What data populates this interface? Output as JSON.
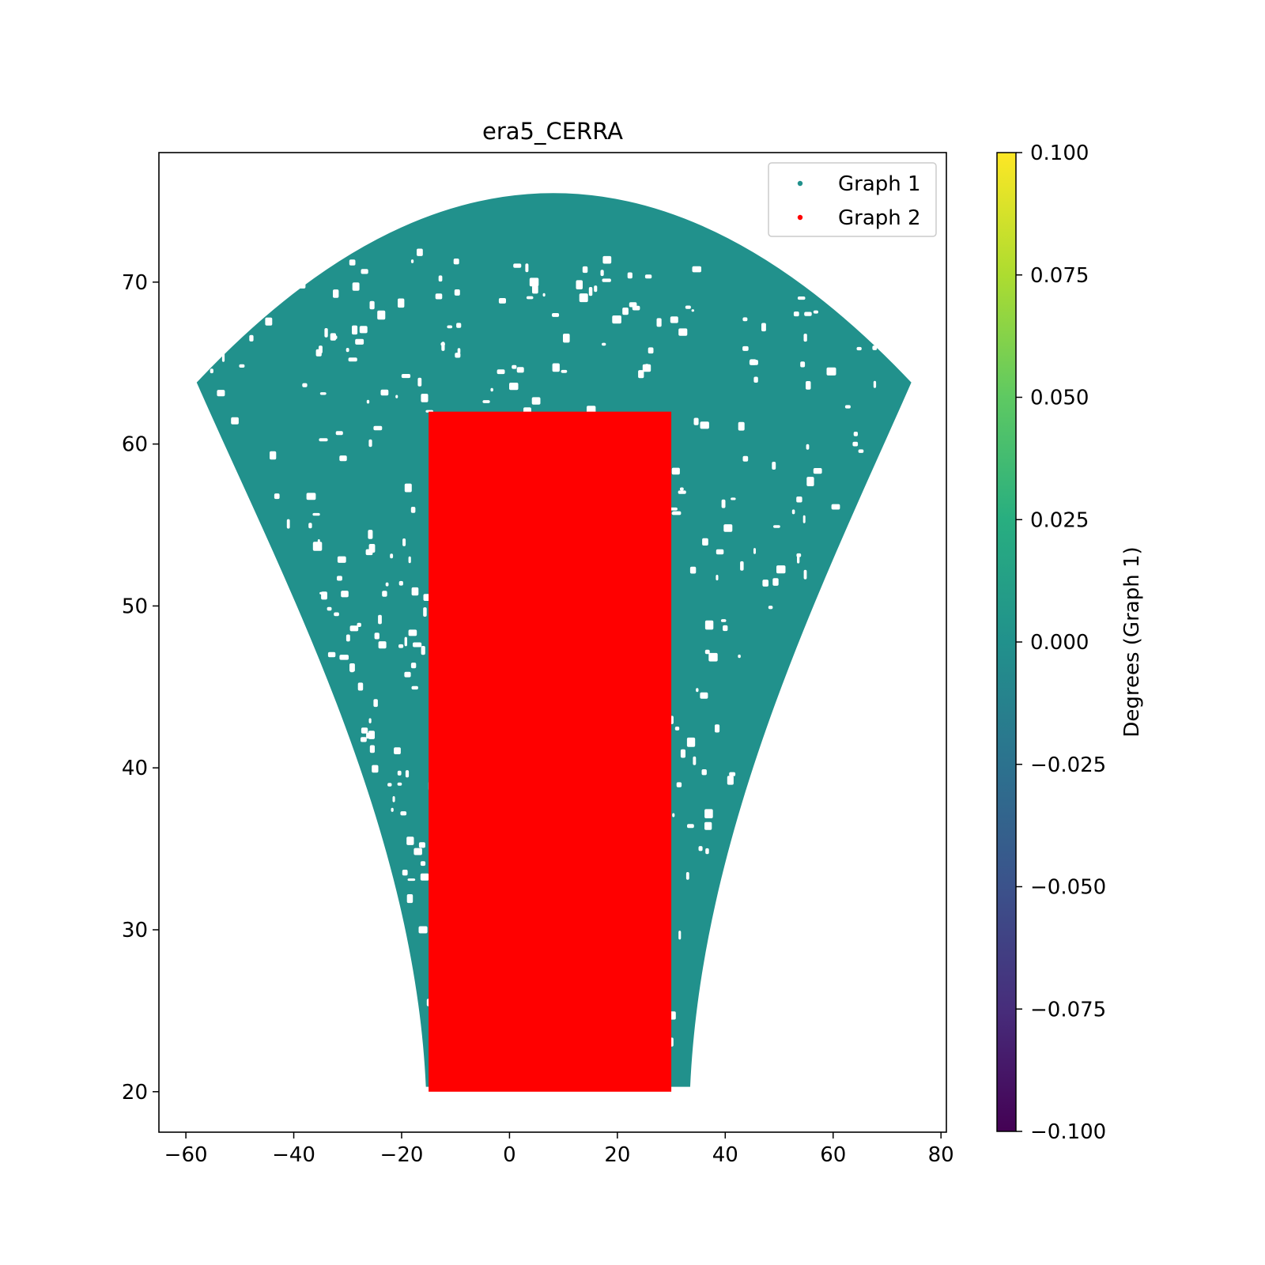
{
  "chart_data": {
    "type": "scatter",
    "title": "era5_CERRA",
    "xlabel": "",
    "ylabel": "",
    "xlim": [
      -65,
      81
    ],
    "ylim": [
      17.5,
      78
    ],
    "x_ticks": [
      -60,
      -40,
      -20,
      0,
      20,
      40,
      60,
      80
    ],
    "x_tick_labels": [
      "−60",
      "−40",
      "−20",
      "0",
      "20",
      "40",
      "60",
      "80"
    ],
    "y_ticks": [
      20,
      30,
      40,
      50,
      60,
      70
    ],
    "y_tick_labels": [
      "20",
      "30",
      "40",
      "50",
      "60",
      "70"
    ],
    "grid": false,
    "legend_position": "top-right",
    "series": [
      {
        "name": "Graph 1",
        "color": "#21918c",
        "shape": "fan-shaped lat/lon grid (Lambert conformal domain)",
        "corners": {
          "bottom_left": [
            -15.5,
            20.3
          ],
          "bottom_right": [
            33.5,
            20.3
          ],
          "top_left": [
            -58,
            63.8
          ],
          "top_right": [
            74.5,
            63.8
          ],
          "top_apex": [
            8,
            75.5
          ]
        }
      },
      {
        "name": "Graph 2",
        "color": "#ff0000",
        "shape": "regular lat/lon grid",
        "x_range": [
          -15,
          30
        ],
        "y_range": [
          20,
          62
        ]
      }
    ],
    "colorbar": {
      "label": "Degrees (Graph 1)",
      "colormap": "viridis",
      "range": [
        -0.1,
        0.1
      ],
      "ticks": [
        0.1,
        0.075,
        0.05,
        0.025,
        0.0,
        -0.025,
        -0.05,
        -0.075,
        -0.1
      ],
      "tick_labels": [
        "0.100",
        "0.075",
        "0.050",
        "0.025",
        "0.000",
        "−0.025",
        "−0.050",
        "−0.075",
        "−0.100"
      ]
    }
  }
}
